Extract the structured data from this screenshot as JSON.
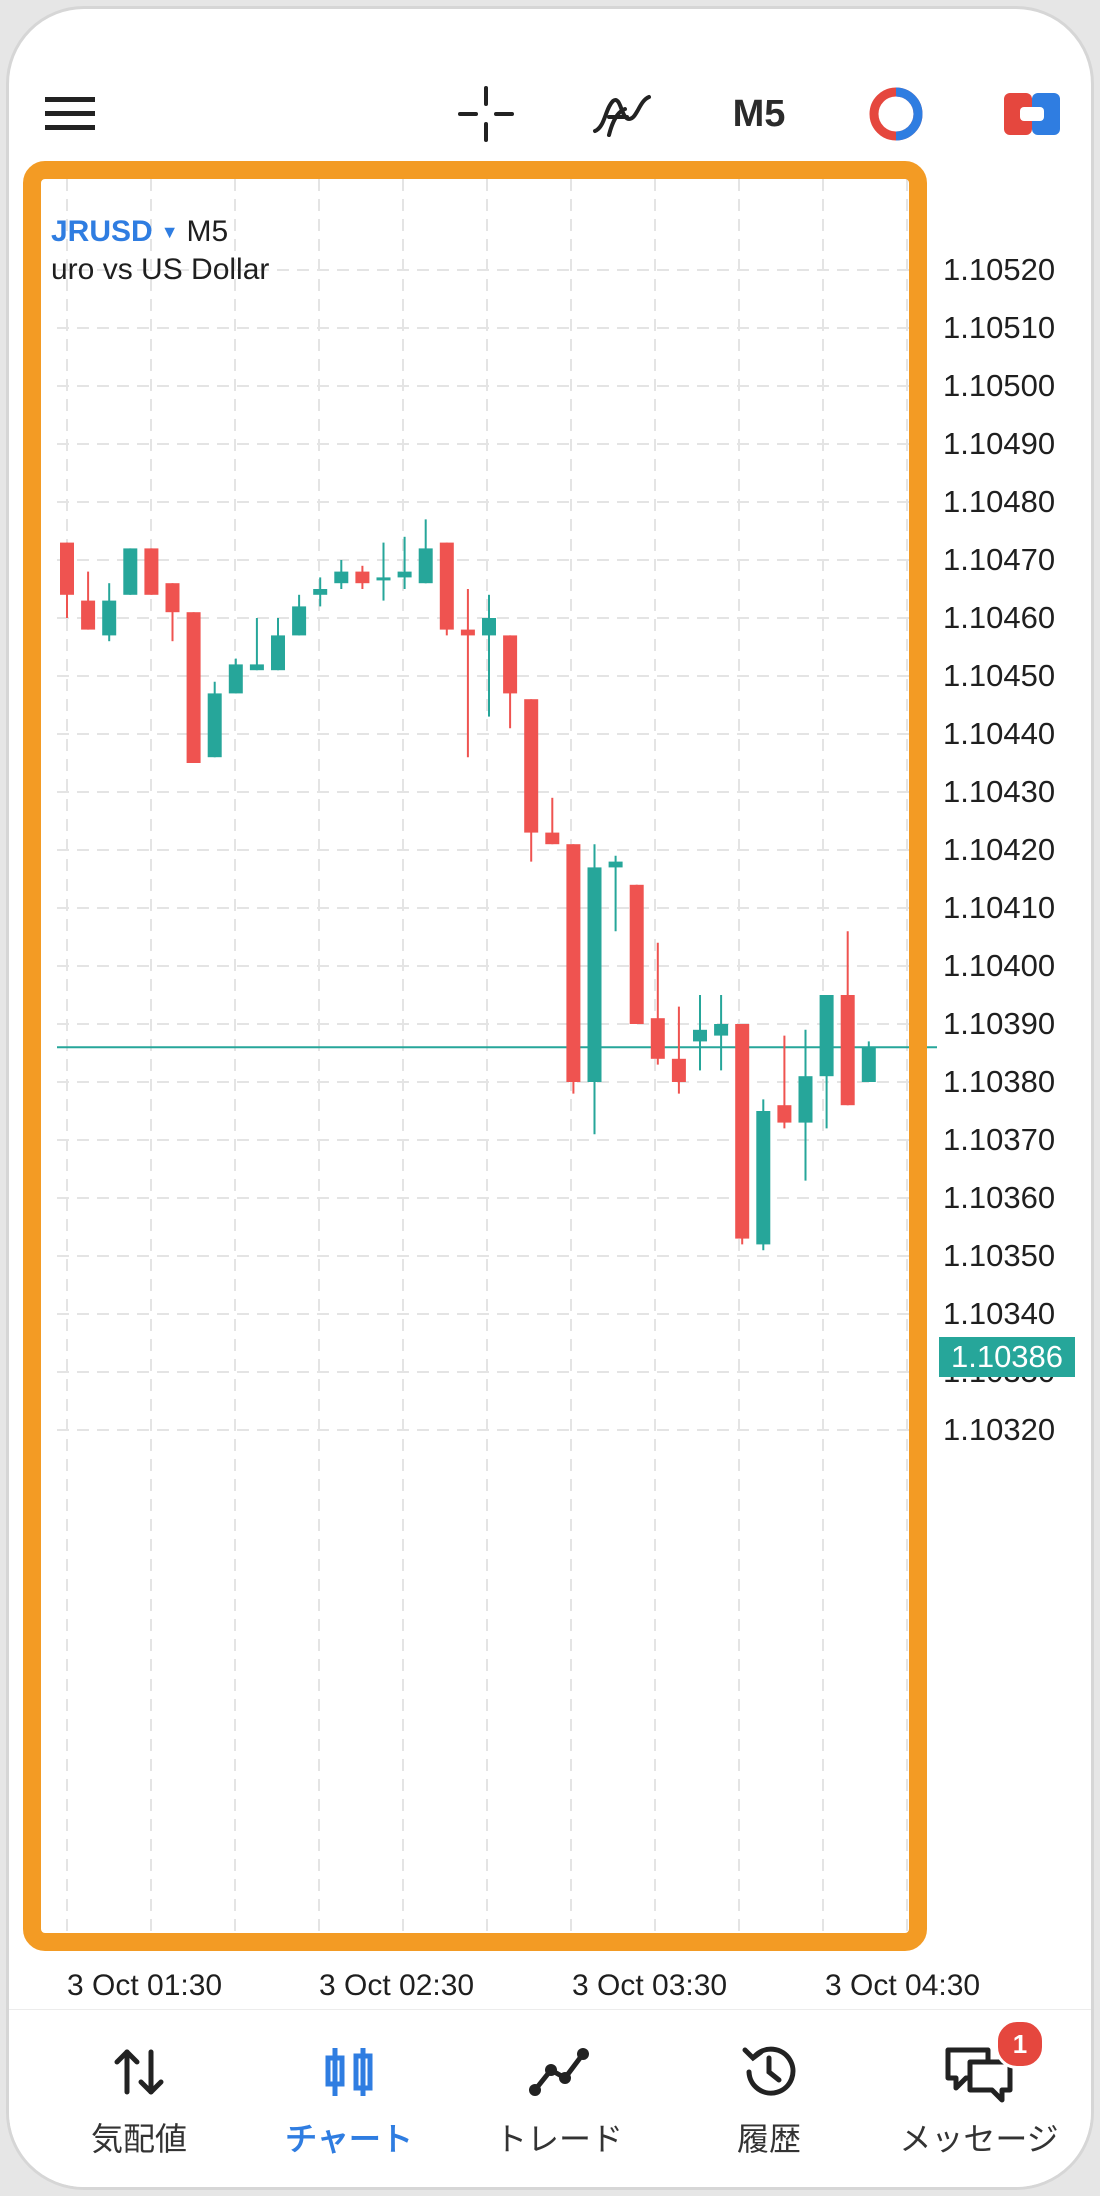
{
  "toolbar": {
    "menu_icon": "hamburger-menu-icon",
    "crosshair_icon": "crosshair-icon",
    "indicators_icon": "indicators-f-icon",
    "timeframe": "M5",
    "clock_icon": "one-click-trading-icon",
    "trade_icon": "trade-ticket-icon"
  },
  "chart": {
    "symbol": "JRUSD",
    "timeframe": "M5",
    "description": "uro vs US Dollar",
    "current_price": "1.10386",
    "price_labels": [
      "1.10520",
      "1.10510",
      "1.10500",
      "1.10490",
      "1.10480",
      "1.10470",
      "1.10460",
      "1.10450",
      "1.10440",
      "1.10430",
      "1.10420",
      "1.10410",
      "1.10400",
      "1.10390",
      "1.10380",
      "1.10370",
      "1.10360",
      "1.10350",
      "1.10340",
      "1.10330",
      "1.10320"
    ],
    "time_labels": [
      "3 Oct 01:30",
      "3 Oct 02:30",
      "3 Oct 03:30",
      "3 Oct 04:30"
    ],
    "colors": {
      "bull": "#26a69a",
      "bear": "#ef5350",
      "grid": "#e4e4e4",
      "highlight": "#f39b24",
      "accent": "#2f7de1"
    }
  },
  "chart_data": {
    "type": "candlestick",
    "symbol": "EURUSD",
    "timeframe": "M5",
    "ylim": [
      1.10315,
      1.10535
    ],
    "current_price": 1.10386,
    "candles": [
      {
        "o": 1.10473,
        "h": 1.10473,
        "l": 1.1046,
        "c": 1.10464
      },
      {
        "o": 1.10463,
        "h": 1.10468,
        "l": 1.10458,
        "c": 1.10458
      },
      {
        "o": 1.10457,
        "h": 1.10466,
        "l": 1.10456,
        "c": 1.10463
      },
      {
        "o": 1.10464,
        "h": 1.10472,
        "l": 1.10464,
        "c": 1.10472
      },
      {
        "o": 1.10472,
        "h": 1.10472,
        "l": 1.10464,
        "c": 1.10464
      },
      {
        "o": 1.10466,
        "h": 1.10466,
        "l": 1.10456,
        "c": 1.10461
      },
      {
        "o": 1.10461,
        "h": 1.10461,
        "l": 1.10435,
        "c": 1.10435
      },
      {
        "o": 1.10436,
        "h": 1.10449,
        "l": 1.10436,
        "c": 1.10447
      },
      {
        "o": 1.10447,
        "h": 1.10453,
        "l": 1.10447,
        "c": 1.10452
      },
      {
        "o": 1.10451,
        "h": 1.1046,
        "l": 1.10451,
        "c": 1.10452
      },
      {
        "o": 1.10451,
        "h": 1.1046,
        "l": 1.10451,
        "c": 1.10457
      },
      {
        "o": 1.10457,
        "h": 1.10464,
        "l": 1.10457,
        "c": 1.10462
      },
      {
        "o": 1.10464,
        "h": 1.10467,
        "l": 1.10462,
        "c": 1.10465
      },
      {
        "o": 1.10466,
        "h": 1.1047,
        "l": 1.10465,
        "c": 1.10468
      },
      {
        "o": 1.10468,
        "h": 1.10469,
        "l": 1.10465,
        "c": 1.10466
      },
      {
        "o": 1.10467,
        "h": 1.10473,
        "l": 1.10463,
        "c": 1.10467
      },
      {
        "o": 1.10467,
        "h": 1.10474,
        "l": 1.10465,
        "c": 1.10468
      },
      {
        "o": 1.10466,
        "h": 1.10477,
        "l": 1.10466,
        "c": 1.10472
      },
      {
        "o": 1.10473,
        "h": 1.10473,
        "l": 1.10457,
        "c": 1.10458
      },
      {
        "o": 1.10458,
        "h": 1.10465,
        "l": 1.10436,
        "c": 1.10457
      },
      {
        "o": 1.10457,
        "h": 1.10464,
        "l": 1.10443,
        "c": 1.1046
      },
      {
        "o": 1.10457,
        "h": 1.10457,
        "l": 1.10441,
        "c": 1.10447
      },
      {
        "o": 1.10446,
        "h": 1.10446,
        "l": 1.10418,
        "c": 1.10423
      },
      {
        "o": 1.10423,
        "h": 1.10429,
        "l": 1.10421,
        "c": 1.10421
      },
      {
        "o": 1.10421,
        "h": 1.10421,
        "l": 1.10378,
        "c": 1.1038
      },
      {
        "o": 1.1038,
        "h": 1.10421,
        "l": 1.10371,
        "c": 1.10417
      },
      {
        "o": 1.10417,
        "h": 1.10419,
        "l": 1.10406,
        "c": 1.10418
      },
      {
        "o": 1.10414,
        "h": 1.10414,
        "l": 1.1039,
        "c": 1.1039
      },
      {
        "o": 1.10391,
        "h": 1.10404,
        "l": 1.10383,
        "c": 1.10384
      },
      {
        "o": 1.10384,
        "h": 1.10393,
        "l": 1.10378,
        "c": 1.1038
      },
      {
        "o": 1.10387,
        "h": 1.10395,
        "l": 1.10382,
        "c": 1.10389
      },
      {
        "o": 1.10388,
        "h": 1.10395,
        "l": 1.10382,
        "c": 1.1039
      },
      {
        "o": 1.1039,
        "h": 1.1039,
        "l": 1.10352,
        "c": 1.10353
      },
      {
        "o": 1.10352,
        "h": 1.10377,
        "l": 1.10351,
        "c": 1.10375
      },
      {
        "o": 1.10376,
        "h": 1.10388,
        "l": 1.10372,
        "c": 1.10373
      },
      {
        "o": 1.10373,
        "h": 1.10389,
        "l": 1.10363,
        "c": 1.10381
      },
      {
        "o": 1.10381,
        "h": 1.10395,
        "l": 1.10372,
        "c": 1.10395
      },
      {
        "o": 1.10395,
        "h": 1.10406,
        "l": 1.10376,
        "c": 1.10376
      },
      {
        "o": 1.1038,
        "h": 1.10387,
        "l": 1.1038,
        "c": 1.10386
      }
    ]
  },
  "bottom_nav": {
    "items": [
      {
        "label": "気配値",
        "icon": "quotes-arrows-icon"
      },
      {
        "label": "チャート",
        "icon": "chart-candles-icon"
      },
      {
        "label": "トレード",
        "icon": "trade-line-icon"
      },
      {
        "label": "履歴",
        "icon": "history-clock-icon"
      },
      {
        "label": "メッセージ",
        "icon": "messages-chat-icon"
      }
    ],
    "active": "チャート",
    "badge": "1"
  }
}
